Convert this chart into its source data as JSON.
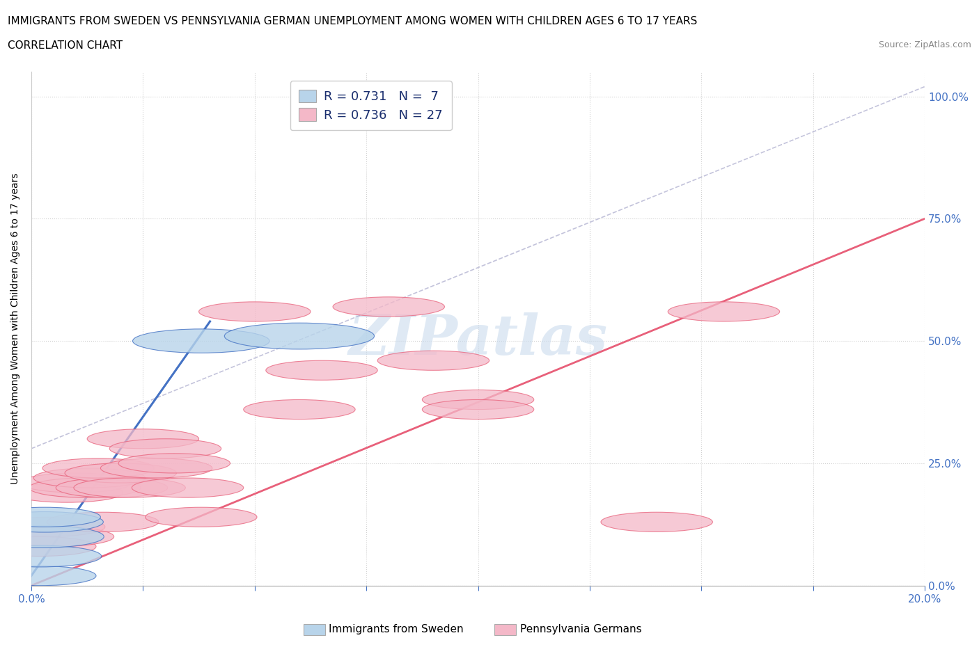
{
  "title_line1": "IMMIGRANTS FROM SWEDEN VS PENNSYLVANIA GERMAN UNEMPLOYMENT AMONG WOMEN WITH CHILDREN AGES 6 TO 17 YEARS",
  "title_line2": "CORRELATION CHART",
  "source_text": "Source: ZipAtlas.com",
  "ylabel": "Unemployment Among Women with Children Ages 6 to 17 years",
  "xlim": [
    0.0,
    0.2
  ],
  "ylim": [
    0.0,
    1.05
  ],
  "x_ticks": [
    0.0,
    0.025,
    0.05,
    0.075,
    0.1,
    0.125,
    0.15,
    0.175,
    0.2
  ],
  "x_tick_labels": [
    "0.0%",
    "",
    "",
    "",
    "",
    "",
    "",
    "",
    "20.0%"
  ],
  "y_ticks": [
    0.0,
    0.25,
    0.5,
    0.75,
    1.0
  ],
  "y_tick_labels": [
    "0.0%",
    "25.0%",
    "50.0%",
    "75.0%",
    "100.0%"
  ],
  "sweden_R": 0.731,
  "sweden_N": 7,
  "pa_german_R": 0.736,
  "pa_german_N": 27,
  "sweden_color": "#b8d4ea",
  "sweden_line_color": "#4472c4",
  "pa_german_color": "#f4b8c8",
  "pa_german_line_color": "#e8607a",
  "sweden_scatter_x": [
    0.002,
    0.002,
    0.002,
    0.003,
    0.003,
    0.038,
    0.06
  ],
  "sweden_scatter_y": [
    0.02,
    0.06,
    0.1,
    0.13,
    0.14,
    0.5,
    0.51
  ],
  "sweden_scatter_size": [
    100,
    120,
    130,
    110,
    100,
    150,
    180
  ],
  "pa_scatter_x": [
    0.002,
    0.004,
    0.006,
    0.008,
    0.01,
    0.012,
    0.013,
    0.015,
    0.016,
    0.018,
    0.02,
    0.022,
    0.025,
    0.028,
    0.03,
    0.032,
    0.035,
    0.038,
    0.05,
    0.06,
    0.065,
    0.08,
    0.09,
    0.1,
    0.1,
    0.14,
    0.155
  ],
  "pa_scatter_y": [
    0.08,
    0.12,
    0.1,
    0.19,
    0.21,
    0.2,
    0.22,
    0.24,
    0.13,
    0.2,
    0.23,
    0.2,
    0.3,
    0.24,
    0.28,
    0.25,
    0.2,
    0.14,
    0.56,
    0.36,
    0.44,
    0.57,
    0.46,
    0.38,
    0.36,
    0.13,
    0.56
  ],
  "pa_scatter_size": [
    100,
    100,
    100,
    100,
    100,
    100,
    100,
    100,
    100,
    100,
    100,
    100,
    100,
    100,
    100,
    100,
    100,
    100,
    100,
    100,
    100,
    100,
    100,
    100,
    100,
    100,
    100
  ],
  "sweden_trendline_x": [
    0.0,
    0.04
  ],
  "sweden_trendline_y": [
    0.02,
    0.54
  ],
  "dashed_trendline_x": [
    0.0,
    0.2
  ],
  "dashed_trendline_y": [
    0.28,
    1.02
  ],
  "pa_trendline_x": [
    0.0,
    0.2
  ],
  "pa_trendline_y": [
    0.0,
    0.75
  ],
  "watermark": "ZIPatlas",
  "background_color": "#ffffff",
  "grid_color": "#cccccc",
  "title_fontsize": 11,
  "legend_fontsize": 13,
  "axis_label_fontsize": 10,
  "tick_fontsize": 11,
  "tick_color": "#4472c4"
}
